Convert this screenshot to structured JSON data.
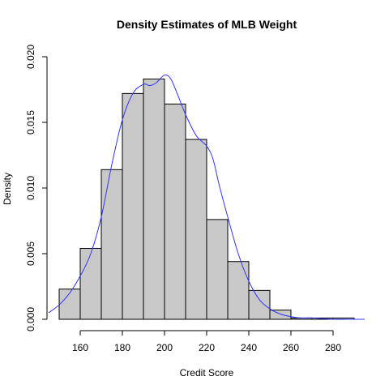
{
  "chart_data": {
    "type": "bar",
    "subtype": "histogram-with-density-curve",
    "title": "Density Estimates of MLB Weight",
    "xlabel": "Credit Score",
    "ylabel": "Density",
    "xlim": [
      145,
      295
    ],
    "ylim": [
      0,
      0.02
    ],
    "x_ticks": [
      160,
      180,
      200,
      220,
      240,
      260,
      280
    ],
    "y_ticks": [
      0,
      0.005,
      0.01,
      0.015,
      0.02
    ],
    "y_tick_labels": [
      "0.000",
      "0.005",
      "0.010",
      "0.015",
      "0.020"
    ],
    "bins": [
      {
        "x0": 150,
        "x1": 160,
        "density": 0.0023
      },
      {
        "x0": 160,
        "x1": 170,
        "density": 0.0054
      },
      {
        "x0": 170,
        "x1": 180,
        "density": 0.0114
      },
      {
        "x0": 180,
        "x1": 190,
        "density": 0.0172
      },
      {
        "x0": 190,
        "x1": 200,
        "density": 0.0183
      },
      {
        "x0": 200,
        "x1": 210,
        "density": 0.0164
      },
      {
        "x0": 210,
        "x1": 220,
        "density": 0.0137
      },
      {
        "x0": 220,
        "x1": 230,
        "density": 0.0076
      },
      {
        "x0": 230,
        "x1": 240,
        "density": 0.0044
      },
      {
        "x0": 240,
        "x1": 250,
        "density": 0.0022
      },
      {
        "x0": 250,
        "x1": 260,
        "density": 0.0007
      },
      {
        "x0": 260,
        "x1": 270,
        "density": 0.0001
      },
      {
        "x0": 270,
        "x1": 280,
        "density": 0.0001
      },
      {
        "x0": 280,
        "x1": 290,
        "density": 0.0001
      }
    ],
    "density_curve": {
      "x": [
        145,
        150,
        155,
        160,
        165,
        170,
        175,
        180,
        185,
        190,
        193,
        196,
        200,
        203,
        206,
        210,
        215,
        220,
        223,
        226,
        230,
        235,
        240,
        245,
        250,
        255,
        260,
        265,
        270,
        280,
        290,
        295
      ],
      "y": [
        0.0005,
        0.0011,
        0.002,
        0.0033,
        0.005,
        0.0078,
        0.0118,
        0.0152,
        0.0172,
        0.0179,
        0.0178,
        0.018,
        0.0186,
        0.0183,
        0.0172,
        0.0156,
        0.014,
        0.0132,
        0.0122,
        0.0102,
        0.0078,
        0.005,
        0.0029,
        0.0015,
        0.0008,
        0.0004,
        0.0002,
        0.0001,
        0.0001,
        0.0,
        0.0,
        0.0
      ]
    },
    "bar_fill": "#c8c8c8",
    "bar_stroke": "#000000",
    "curve_color": "#3333ff"
  }
}
